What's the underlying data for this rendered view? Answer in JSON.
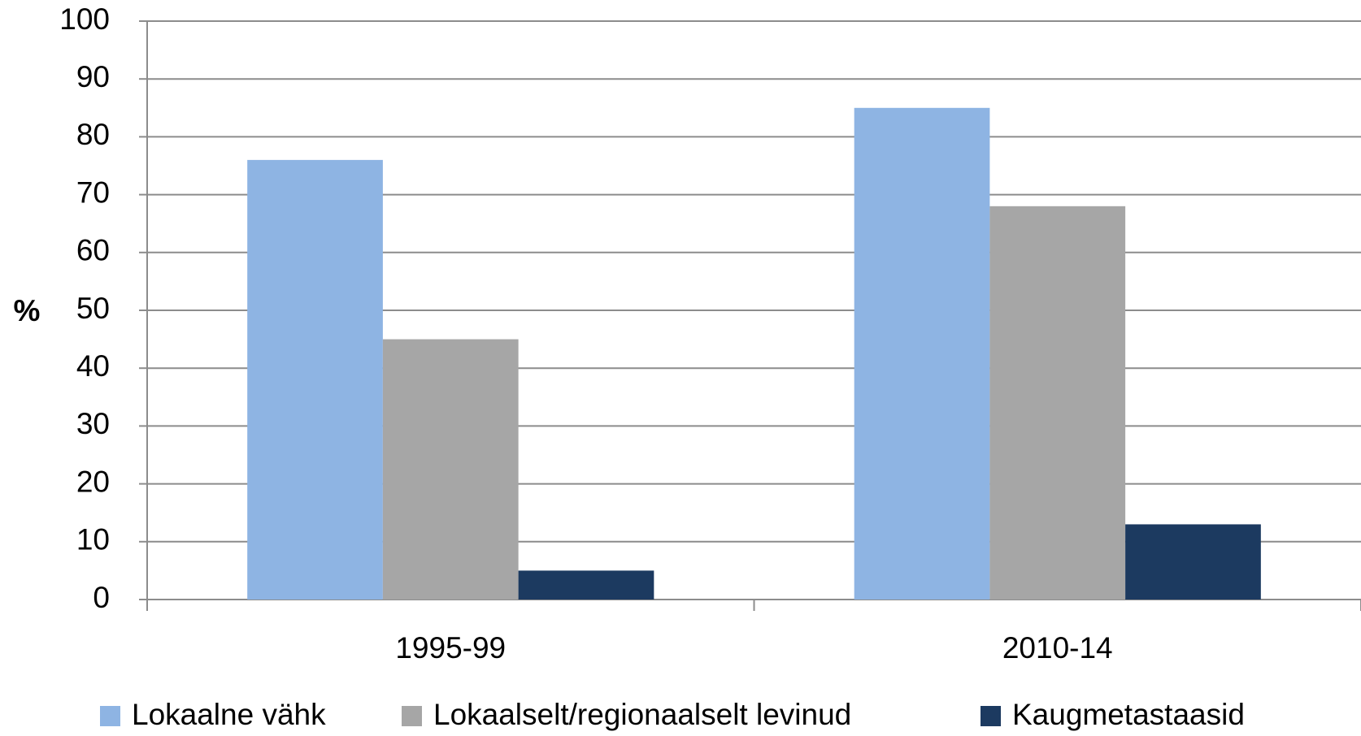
{
  "chart_data": {
    "type": "bar",
    "y_label": "%",
    "categories": [
      "1995-99",
      "2010-14"
    ],
    "series": [
      {
        "name": "Lokaalne vähk",
        "color": "#8eb4e3",
        "values": [
          76,
          85
        ]
      },
      {
        "name": "Lokaalselt/regionaalselt levinud",
        "color": "#a6a6a6",
        "values": [
          45,
          68
        ]
      },
      {
        "name": "Kaugmetastaasid",
        "color": "#1c3a60",
        "values": [
          5,
          13
        ]
      }
    ],
    "ylim": [
      0,
      100
    ],
    "yticks": [
      0,
      10,
      20,
      30,
      40,
      50,
      60,
      70,
      80,
      90,
      100
    ],
    "grid": true,
    "legend": "bottom"
  }
}
